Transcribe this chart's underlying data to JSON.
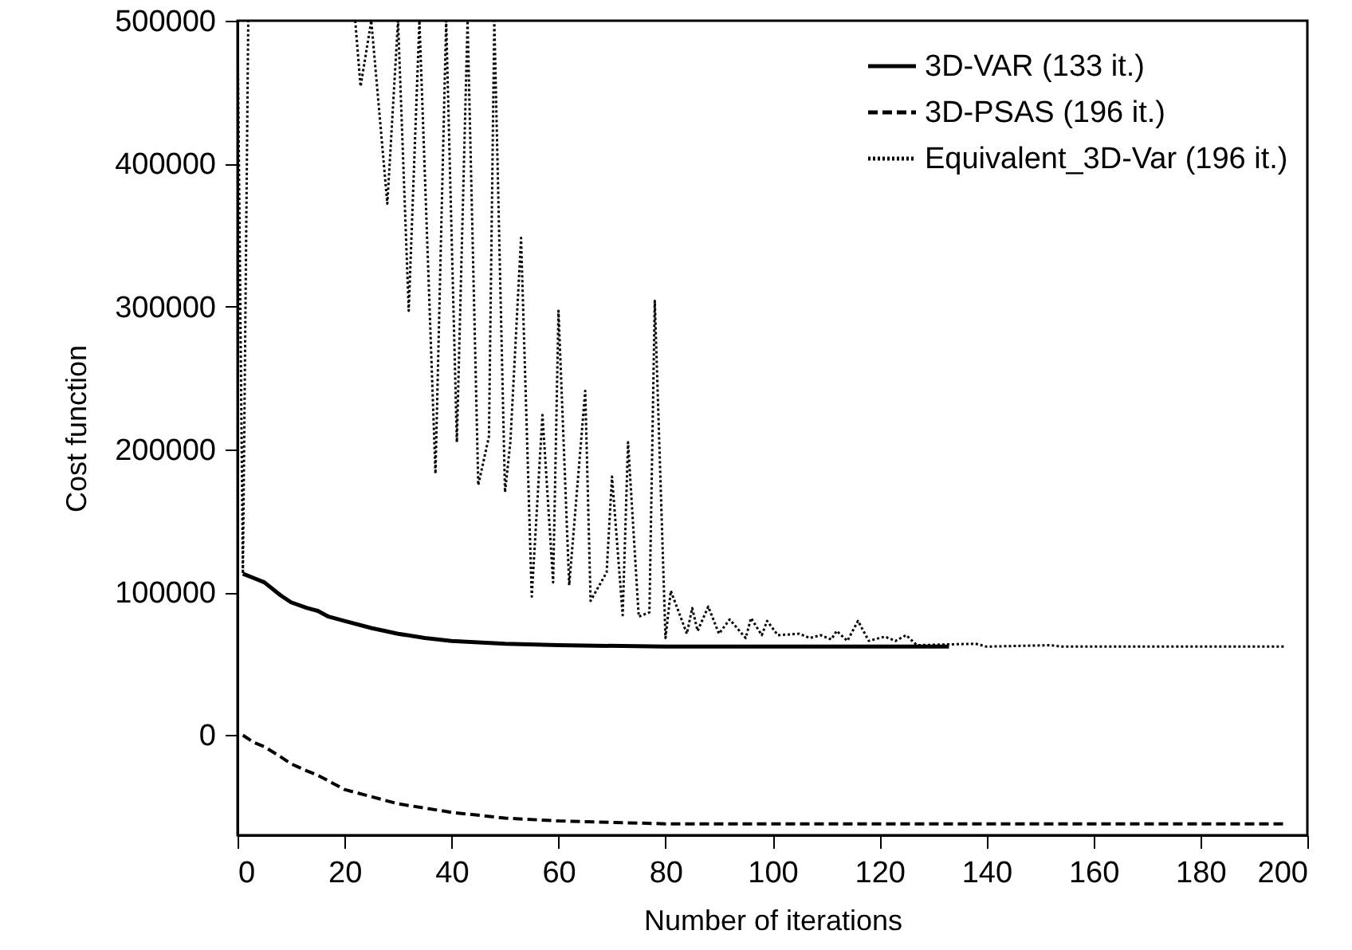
{
  "chart_data": {
    "type": "line",
    "xlabel": "Number of iterations",
    "ylabel": "Cost function",
    "xlim": [
      0,
      200
    ],
    "ylim": [
      -70000,
      500000
    ],
    "xticks": [
      0,
      20,
      40,
      60,
      80,
      100,
      120,
      140,
      160,
      180,
      200
    ],
    "yticks": [
      0,
      100000,
      200000,
      300000,
      400000,
      500000
    ],
    "grid": false,
    "legend": "top right",
    "series": [
      {
        "name": "3D-VAR (133 it.)",
        "color": "#000000",
        "line_style": "solid",
        "x": [
          1,
          3,
          5,
          8,
          10,
          13,
          15,
          17,
          20,
          25,
          30,
          35,
          40,
          50,
          60,
          80,
          100,
          133
        ],
        "values": [
          113000,
          110000,
          107000,
          98000,
          93000,
          89000,
          87000,
          83000,
          80000,
          75000,
          71000,
          68000,
          66000,
          64000,
          63000,
          62000,
          62000,
          62000
        ]
      },
      {
        "name": "3D-PSAS (196 it.)",
        "color": "#000000",
        "line_style": "dashed",
        "x": [
          1,
          3,
          5,
          8,
          10,
          13,
          15,
          18,
          20,
          25,
          30,
          35,
          40,
          50,
          60,
          80,
          100,
          140,
          196
        ],
        "values": [
          0,
          -5000,
          -8000,
          -15000,
          -20000,
          -25000,
          -28000,
          -34000,
          -38000,
          -43000,
          -48000,
          -51000,
          -54000,
          -58000,
          -60000,
          -62000,
          -62000,
          -62000,
          -62000
        ]
      },
      {
        "name": "Equivalent_3D-Var (196 it.)",
        "color": "#000000",
        "line_style": "dotted",
        "x": [
          0,
          1,
          2,
          3,
          22,
          23,
          25,
          28,
          30,
          32,
          34,
          37,
          39,
          41,
          43,
          45,
          47,
          48,
          50,
          51,
          53,
          55,
          57,
          59,
          60,
          62,
          65,
          66,
          69,
          70,
          72,
          73,
          75,
          77,
          78,
          80,
          81,
          84,
          85,
          86,
          88,
          90,
          92,
          95,
          96,
          98,
          99,
          101,
          105,
          107,
          109,
          111,
          112,
          114,
          116,
          118,
          121,
          123,
          125,
          127,
          138,
          140,
          152,
          154,
          196
        ],
        "values": [
          500000,
          113000,
          500000,
          null,
          500000,
          454000,
          500000,
          372000,
          500000,
          297000,
          500000,
          183000,
          500000,
          205000,
          500000,
          175000,
          209000,
          500000,
          170000,
          205000,
          348000,
          97000,
          224000,
          107000,
          297000,
          105000,
          241000,
          94000,
          114000,
          181000,
          84000,
          205000,
          83000,
          86000,
          304000,
          68000,
          101000,
          71000,
          89000,
          73000,
          90000,
          71000,
          81000,
          68000,
          82000,
          70000,
          80000,
          70000,
          71000,
          68000,
          70000,
          67000,
          73000,
          66000,
          80000,
          66000,
          69000,
          66000,
          70000,
          63000,
          64000,
          62000,
          63000,
          62000,
          62000
        ]
      }
    ]
  }
}
